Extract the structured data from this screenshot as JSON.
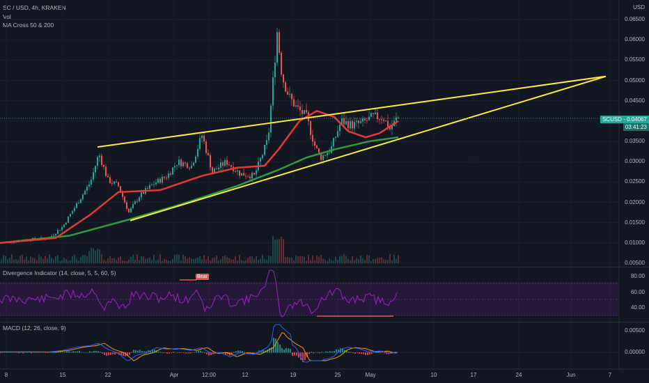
{
  "header": {
    "symbol_line": "SC / USD, 4h, KRAKEN",
    "vol_label": "Vol",
    "ma_label": "MA Cross 50 & 200",
    "currency": "USD"
  },
  "price_tag": {
    "symbol": "SCUSD",
    "price": "0.04067",
    "countdown": "03:41:23"
  },
  "colors": {
    "background": "#131722",
    "up": "#26a69a",
    "down": "#ef5350",
    "trendline": "#ffeb3b",
    "ma50": "#e53935",
    "ma200": "#2e9b3f",
    "rsi": "#a020c8",
    "macd": "#2962ff",
    "signal": "#ff9800"
  },
  "indicators": {
    "rsi_label": "Divergence Indicator (14, close, 5, 5, 60, 5)",
    "rsi_ticks": [
      "80.00",
      "60.00",
      "40.00"
    ],
    "bear_label": "Bear",
    "macd_label": "MACD (12, 26, close, 9)",
    "macd_ticks": [
      "0.00500",
      "0.00000"
    ]
  },
  "chart_data": {
    "type": "candlestick",
    "title": "SC / USD, 4h, KRAKEN",
    "y_ticks": [
      "0.06500",
      "0.06000",
      "0.05500",
      "0.05000",
      "0.04500",
      "0.04000",
      "0.03500",
      "0.03000",
      "0.02500",
      "0.02000",
      "0.01500",
      "0.01000",
      "0.00500"
    ],
    "x_ticks": [
      "8",
      "15",
      "22",
      "Apr",
      "12:00",
      "12",
      "19",
      "25",
      "May",
      "10",
      "17",
      "24",
      "Jun",
      "7"
    ],
    "ylim": [
      0.004,
      0.066
    ],
    "trendlines": [
      {
        "name": "upper",
        "from": [
          "Mar 20",
          0.0336
        ],
        "to": [
          "Jun 6",
          0.051
        ]
      },
      {
        "name": "lower",
        "from": [
          "Mar 24",
          0.0155
        ],
        "to": [
          "Jun 6",
          0.051
        ]
      }
    ],
    "last_price": 0.04067
  }
}
